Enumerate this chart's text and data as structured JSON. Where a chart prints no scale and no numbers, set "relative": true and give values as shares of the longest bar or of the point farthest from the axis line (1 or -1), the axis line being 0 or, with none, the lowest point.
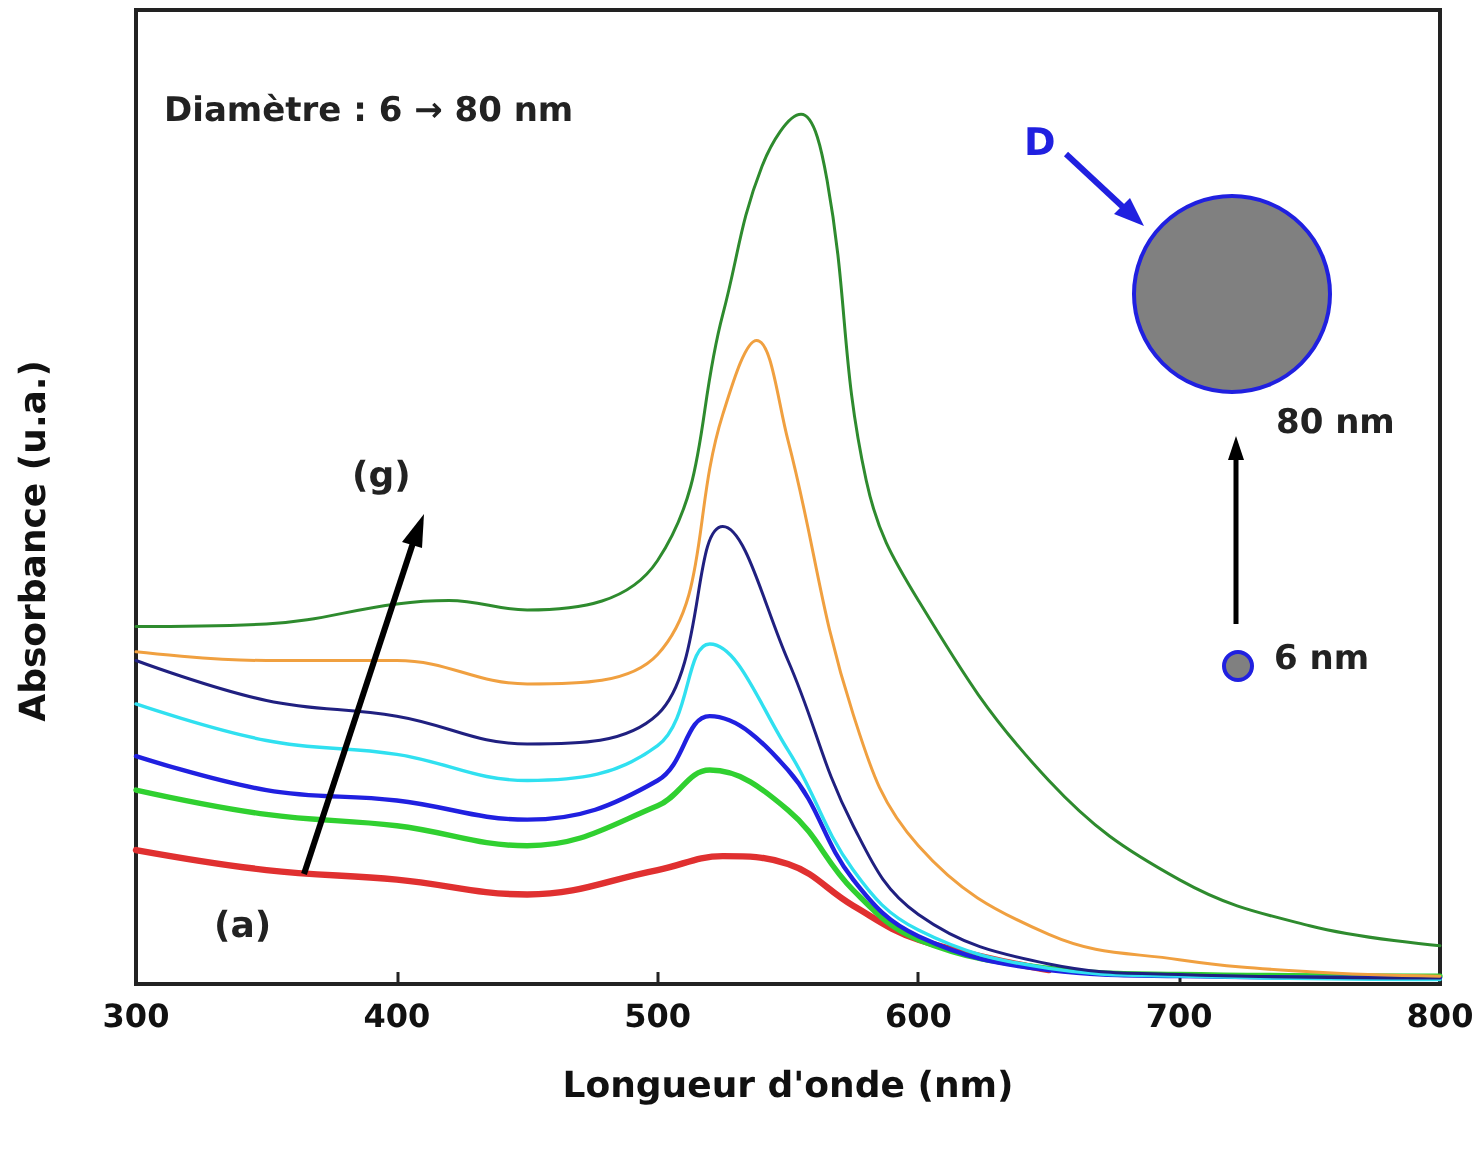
{
  "chart_data": {
    "type": "line",
    "relative": true,
    "xlabel": "Longueur d'onde (nm)",
    "ylabel": "Absorbance (u.a.)",
    "xlim": [
      300,
      800
    ],
    "xticks": [
      300,
      400,
      500,
      600,
      700,
      800
    ],
    "grid": false,
    "marker": "none",
    "line_style": "solid",
    "annotations": [
      "Diamètre : 6 → 80 nm",
      "(g)",
      "(a)",
      "D",
      "80 nm",
      "6 nm"
    ],
    "series": [
      {
        "color": "#e03030",
        "x": [
          300,
          350,
          400,
          450,
          500,
          525,
          550,
          575,
          600,
          650
        ],
        "values": [
          0.154,
          0.131,
          0.12,
          0.103,
          0.131,
          0.147,
          0.138,
          0.09,
          0.051,
          0.016
        ]
      },
      {
        "color": "#30d030",
        "x": [
          300,
          350,
          400,
          450,
          500,
          520,
          550,
          575,
          600,
          650,
          700,
          800
        ],
        "values": [
          0.223,
          0.195,
          0.182,
          0.159,
          0.205,
          0.246,
          0.2,
          0.108,
          0.051,
          0.018,
          0.011,
          0.009
        ]
      },
      {
        "color": "#2020e0",
        "x": [
          300,
          350,
          400,
          450,
          500,
          520,
          550,
          575,
          600,
          650,
          700,
          800
        ],
        "values": [
          0.262,
          0.223,
          0.211,
          0.189,
          0.234,
          0.308,
          0.246,
          0.12,
          0.055,
          0.016,
          0.009,
          0.007
        ]
      },
      {
        "color": "#30e0f0",
        "x": [
          300,
          350,
          400,
          450,
          500,
          520,
          550,
          575,
          600,
          650,
          700,
          800
        ],
        "values": [
          0.322,
          0.28,
          0.264,
          0.234,
          0.274,
          0.391,
          0.269,
          0.131,
          0.062,
          0.018,
          0.009,
          0.005
        ]
      },
      {
        "color": "#202080",
        "x": [
          300,
          350,
          400,
          450,
          500,
          525,
          550,
          575,
          600,
          650,
          700,
          800
        ],
        "values": [
          0.372,
          0.326,
          0.308,
          0.276,
          0.31,
          0.526,
          0.372,
          0.182,
          0.08,
          0.023,
          0.011,
          0.007
        ]
      },
      {
        "color": "#f0a040",
        "x": [
          300,
          350,
          400,
          450,
          500,
          525,
          538,
          550,
          575,
          600,
          650,
          700,
          750,
          800
        ],
        "values": [
          0.382,
          0.372,
          0.372,
          0.345,
          0.379,
          0.655,
          0.74,
          0.625,
          0.31,
          0.159,
          0.057,
          0.028,
          0.014,
          0.009
        ]
      },
      {
        "color": "#2e8b2e",
        "x": [
          300,
          350,
          400,
          420,
          450,
          500,
          525,
          540,
          555,
          565,
          580,
          600,
          650,
          700,
          750,
          800
        ],
        "values": [
          0.411,
          0.414,
          0.437,
          0.441,
          0.43,
          0.487,
          0.77,
          0.94,
          1,
          0.924,
          0.579,
          0.441,
          0.234,
          0.12,
          0.067,
          0.044
        ]
      }
    ]
  }
}
